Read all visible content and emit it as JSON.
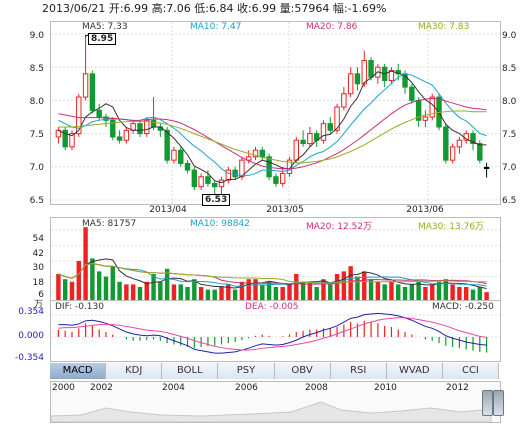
{
  "header": {
    "quote_line": "2013/06/21 开:6.99 高:7.06 低:6.84 收:6.99 量:57964 幅:-1.69%"
  },
  "price_panel": {
    "legend": {
      "ma5": "MA5: 7.33",
      "ma10": "MA10: 7.47",
      "ma20": "MA20: 7.86",
      "ma30": "MA30: 7.83"
    },
    "colors": {
      "ma5": "#333333",
      "ma10": "#1aa3c9",
      "ma20": "#cc2f7a",
      "ma30": "#99aa22",
      "up": "#ee2222",
      "down": "#119933"
    },
    "y_ticks_left": [
      "9.0",
      "8.5",
      "8.0",
      "7.5",
      "7.0",
      "6.5"
    ],
    "y_ticks_right": [
      "9.0",
      "8.5",
      "8.0",
      "7.5",
      "7.0",
      "6.5"
    ],
    "x_ticks": [
      "2013/04",
      "2013/05",
      "2013/06"
    ],
    "high_callout": "8.95",
    "low_callout": "6.53"
  },
  "volume_panel": {
    "legend": {
      "ma5": "MA5: 81757",
      "ma10": "MA10: 98842",
      "ma20": "MA20: 12.52万",
      "ma30": "MA30: 13.76万"
    },
    "y_ticks": [
      "54",
      "42",
      "30",
      "18",
      "6"
    ],
    "unit": "万"
  },
  "macd_panel": {
    "legend": {
      "dif": "DIF: -0.130",
      "dea": "DEA: -0.005",
      "macd": "MACD: -0.250"
    },
    "y_ticks": [
      "0.354",
      "0.000",
      "-0.354"
    ]
  },
  "tabs": [
    {
      "label": "MACD",
      "active": true
    },
    {
      "label": "KDJ",
      "active": false
    },
    {
      "label": "BOLL",
      "active": false
    },
    {
      "label": "PSY",
      "active": false
    },
    {
      "label": "OBV",
      "active": false
    },
    {
      "label": "RSI",
      "active": false
    },
    {
      "label": "WVAD",
      "active": false
    },
    {
      "label": "CCI",
      "active": false
    }
  ],
  "navigator": {
    "years": [
      "2000",
      "2002",
      "2004",
      "2006",
      "2008",
      "2010",
      "2012"
    ]
  },
  "chart_data": {
    "type": "candlestick",
    "title": "2013/06/21 开:6.99 高:7.06 低:6.84 收:6.99 量:57964 幅:-1.69%",
    "ylim": [
      6.5,
      9.0
    ],
    "x_ticks": [
      "2013/04",
      "2013/05",
      "2013/06"
    ],
    "candles": [
      {
        "o": 7.45,
        "c": 7.55,
        "h": 7.6,
        "l": 7.35
      },
      {
        "o": 7.55,
        "c": 7.3,
        "h": 7.6,
        "l": 7.25
      },
      {
        "o": 7.3,
        "c": 7.5,
        "h": 7.55,
        "l": 7.25
      },
      {
        "o": 7.5,
        "c": 8.05,
        "h": 8.1,
        "l": 7.45
      },
      {
        "o": 8.05,
        "c": 8.4,
        "h": 8.95,
        "l": 8.0
      },
      {
        "o": 8.4,
        "c": 7.85,
        "h": 8.45,
        "l": 7.8
      },
      {
        "o": 7.85,
        "c": 7.75,
        "h": 7.95,
        "l": 7.7
      },
      {
        "o": 7.75,
        "c": 7.7,
        "h": 7.8,
        "l": 7.6
      },
      {
        "o": 7.7,
        "c": 7.45,
        "h": 7.75,
        "l": 7.4
      },
      {
        "o": 7.45,
        "c": 7.4,
        "h": 7.55,
        "l": 7.35
      },
      {
        "o": 7.4,
        "c": 7.55,
        "h": 7.6,
        "l": 7.35
      },
      {
        "o": 7.55,
        "c": 7.65,
        "h": 7.7,
        "l": 7.5
      },
      {
        "o": 7.65,
        "c": 7.5,
        "h": 7.7,
        "l": 7.45
      },
      {
        "o": 7.5,
        "c": 7.7,
        "h": 7.75,
        "l": 7.45
      },
      {
        "o": 7.7,
        "c": 7.6,
        "h": 8.05,
        "l": 7.55
      },
      {
        "o": 7.6,
        "c": 7.55,
        "h": 7.65,
        "l": 7.45
      },
      {
        "o": 7.55,
        "c": 7.1,
        "h": 7.6,
        "l": 7.05
      },
      {
        "o": 7.1,
        "c": 7.25,
        "h": 7.3,
        "l": 7.05
      },
      {
        "o": 7.25,
        "c": 7.05,
        "h": 7.3,
        "l": 7.0
      },
      {
        "o": 7.05,
        "c": 6.95,
        "h": 7.1,
        "l": 6.9
      },
      {
        "o": 6.95,
        "c": 6.7,
        "h": 7.0,
        "l": 6.65
      },
      {
        "o": 6.7,
        "c": 6.85,
        "h": 6.9,
        "l": 6.65
      },
      {
        "o": 6.85,
        "c": 6.75,
        "h": 6.95,
        "l": 6.7
      },
      {
        "o": 6.75,
        "c": 6.7,
        "h": 6.8,
        "l": 6.55
      },
      {
        "o": 6.7,
        "c": 6.8,
        "h": 6.85,
        "l": 6.53
      },
      {
        "o": 6.8,
        "c": 6.95,
        "h": 7.0,
        "l": 6.75
      },
      {
        "o": 6.95,
        "c": 6.85,
        "h": 7.0,
        "l": 6.8
      },
      {
        "o": 6.85,
        "c": 7.1,
        "h": 7.15,
        "l": 6.8
      },
      {
        "o": 7.1,
        "c": 7.15,
        "h": 7.25,
        "l": 7.05
      },
      {
        "o": 7.15,
        "c": 7.25,
        "h": 7.3,
        "l": 7.1
      },
      {
        "o": 7.25,
        "c": 7.15,
        "h": 7.3,
        "l": 7.1
      },
      {
        "o": 7.15,
        "c": 6.85,
        "h": 7.2,
        "l": 6.8
      },
      {
        "o": 6.85,
        "c": 6.75,
        "h": 6.9,
        "l": 6.7
      },
      {
        "o": 6.75,
        "c": 6.9,
        "h": 7.0,
        "l": 6.7
      },
      {
        "o": 6.9,
        "c": 7.1,
        "h": 7.15,
        "l": 6.85
      },
      {
        "o": 7.1,
        "c": 7.4,
        "h": 7.45,
        "l": 7.05
      },
      {
        "o": 7.4,
        "c": 7.35,
        "h": 7.55,
        "l": 7.3
      },
      {
        "o": 7.35,
        "c": 7.5,
        "h": 7.6,
        "l": 7.3
      },
      {
        "o": 7.5,
        "c": 7.4,
        "h": 7.55,
        "l": 7.3
      },
      {
        "o": 7.4,
        "c": 7.65,
        "h": 7.7,
        "l": 7.35
      },
      {
        "o": 7.65,
        "c": 7.55,
        "h": 7.75,
        "l": 7.5
      },
      {
        "o": 7.55,
        "c": 7.9,
        "h": 7.95,
        "l": 7.5
      },
      {
        "o": 7.9,
        "c": 8.1,
        "h": 8.2,
        "l": 7.85
      },
      {
        "o": 8.1,
        "c": 8.4,
        "h": 8.5,
        "l": 8.05
      },
      {
        "o": 8.4,
        "c": 8.25,
        "h": 8.5,
        "l": 8.15
      },
      {
        "o": 8.25,
        "c": 8.6,
        "h": 8.75,
        "l": 8.2
      },
      {
        "o": 8.6,
        "c": 8.35,
        "h": 8.65,
        "l": 8.3
      },
      {
        "o": 8.35,
        "c": 8.5,
        "h": 8.55,
        "l": 8.25
      },
      {
        "o": 8.5,
        "c": 8.3,
        "h": 8.55,
        "l": 8.2
      },
      {
        "o": 8.3,
        "c": 8.45,
        "h": 8.5,
        "l": 8.25
      },
      {
        "o": 8.45,
        "c": 8.4,
        "h": 8.55,
        "l": 8.3
      },
      {
        "o": 8.4,
        "c": 8.2,
        "h": 8.45,
        "l": 8.1
      },
      {
        "o": 8.2,
        "c": 8.0,
        "h": 8.25,
        "l": 7.95
      },
      {
        "o": 8.0,
        "c": 7.7,
        "h": 8.05,
        "l": 7.6
      },
      {
        "o": 7.7,
        "c": 7.75,
        "h": 7.85,
        "l": 7.6
      },
      {
        "o": 7.75,
        "c": 8.05,
        "h": 8.1,
        "l": 7.7
      },
      {
        "o": 8.05,
        "c": 7.6,
        "h": 8.1,
        "l": 7.55
      },
      {
        "o": 7.6,
        "c": 7.1,
        "h": 7.65,
        "l": 7.05
      },
      {
        "o": 7.1,
        "c": 7.3,
        "h": 7.35,
        "l": 7.05
      },
      {
        "o": 7.3,
        "c": 7.4,
        "h": 7.45,
        "l": 7.2
      },
      {
        "o": 7.4,
        "c": 7.5,
        "h": 7.55,
        "l": 7.35
      },
      {
        "o": 7.5,
        "c": 7.35,
        "h": 7.55,
        "l": 7.25
      },
      {
        "o": 7.35,
        "c": 7.1,
        "h": 7.4,
        "l": 7.05
      },
      {
        "o": 6.99,
        "c": 6.99,
        "h": 7.06,
        "l": 6.84
      }
    ],
    "series": [
      {
        "name": "MA5",
        "values": [
          7.55,
          7.5,
          7.47,
          7.55,
          7.75,
          7.83,
          7.88,
          7.95,
          7.9,
          7.7,
          7.59,
          7.55,
          7.55,
          7.56,
          7.6,
          7.6,
          7.52,
          7.43,
          7.31,
          7.18,
          7.01,
          6.96,
          6.9,
          6.79,
          6.76,
          6.81,
          6.81,
          6.86,
          6.95,
          7.04,
          7.1,
          7.07,
          7.03,
          6.98,
          6.97,
          7.1,
          7.18,
          7.3,
          7.4,
          7.47,
          7.49,
          7.58,
          7.72,
          7.91,
          8.04,
          8.27,
          8.34,
          8.43,
          8.4,
          8.44,
          8.41,
          8.37,
          8.27,
          8.13,
          8.01,
          7.94,
          7.82,
          7.64,
          7.55,
          7.5,
          7.42,
          7.37,
          7.33,
          7.33
        ]
      },
      {
        "name": "MA10",
        "values": [
          7.7,
          7.65,
          7.6,
          7.58,
          7.62,
          7.68,
          7.7,
          7.72,
          7.72,
          7.72,
          7.71,
          7.69,
          7.7,
          7.73,
          7.75,
          7.71,
          7.65,
          7.58,
          7.5,
          7.4,
          7.31,
          7.24,
          7.15,
          7.07,
          6.97,
          6.9,
          6.88,
          6.87,
          6.87,
          6.9,
          6.95,
          6.95,
          6.94,
          6.93,
          6.95,
          7.02,
          7.08,
          7.15,
          7.2,
          7.23,
          7.3,
          7.38,
          7.5,
          7.63,
          7.75,
          7.87,
          7.96,
          8.07,
          8.16,
          8.25,
          8.35,
          8.4,
          8.38,
          8.33,
          8.28,
          8.23,
          8.1,
          7.96,
          7.84,
          7.74,
          7.69,
          7.6,
          7.5,
          7.47
        ]
      },
      {
        "name": "MA20",
        "values": [
          7.8,
          7.78,
          7.76,
          7.74,
          7.74,
          7.74,
          7.74,
          7.74,
          7.73,
          7.72,
          7.71,
          7.7,
          7.7,
          7.71,
          7.72,
          7.72,
          7.71,
          7.69,
          7.66,
          7.61,
          7.56,
          7.5,
          7.44,
          7.38,
          7.32,
          7.26,
          7.2,
          7.14,
          7.09,
          7.05,
          7.01,
          6.99,
          6.98,
          6.97,
          6.97,
          6.98,
          7.0,
          7.03,
          7.06,
          7.1,
          7.15,
          7.2,
          7.26,
          7.33,
          7.4,
          7.48,
          7.56,
          7.64,
          7.72,
          7.8,
          7.87,
          7.93,
          7.97,
          8.0,
          8.02,
          8.03,
          8.02,
          7.99,
          7.96,
          7.93,
          7.9,
          7.88,
          7.87,
          7.86
        ]
      },
      {
        "name": "MA30",
        "values": [
          7.6,
          7.6,
          7.6,
          7.61,
          7.62,
          7.63,
          7.64,
          7.65,
          7.66,
          7.67,
          7.68,
          7.68,
          7.68,
          7.68,
          7.67,
          7.66,
          7.64,
          7.61,
          7.58,
          7.54,
          7.5,
          7.46,
          7.42,
          7.38,
          7.34,
          7.3,
          7.26,
          7.23,
          7.2,
          7.17,
          7.14,
          7.12,
          7.1,
          7.08,
          7.07,
          7.06,
          7.06,
          7.07,
          7.08,
          7.1,
          7.12,
          7.15,
          7.19,
          7.23,
          7.28,
          7.33,
          7.39,
          7.45,
          7.51,
          7.57,
          7.62,
          7.67,
          7.71,
          7.75,
          7.78,
          7.8,
          7.82,
          7.83,
          7.84,
          7.84,
          7.84,
          7.83,
          7.83,
          7.83
        ]
      }
    ],
    "volume": [
      20,
      16,
      14,
      30,
      56,
      32,
      22,
      18,
      26,
      14,
      12,
      12,
      10,
      14,
      20,
      14,
      24,
      12,
      12,
      10,
      16,
      10,
      8,
      8,
      10,
      12,
      8,
      14,
      16,
      16,
      12,
      14,
      10,
      10,
      12,
      20,
      14,
      14,
      10,
      16,
      12,
      20,
      22,
      26,
      18,
      22,
      16,
      14,
      12,
      14,
      12,
      10,
      12,
      14,
      10,
      12,
      14,
      16,
      12,
      10,
      10,
      8,
      10,
      6
    ],
    "macd_hist": [
      0.12,
      0.1,
      0.08,
      0.14,
      0.22,
      0.18,
      0.12,
      0.08,
      0.04,
      0.0,
      -0.04,
      -0.06,
      -0.06,
      -0.05,
      -0.04,
      -0.06,
      -0.1,
      -0.12,
      -0.14,
      -0.16,
      -0.18,
      -0.16,
      -0.15,
      -0.14,
      -0.12,
      -0.1,
      -0.08,
      -0.05,
      -0.02,
      0.02,
      0.04,
      0.02,
      0.0,
      0.01,
      0.04,
      0.08,
      0.1,
      0.12,
      0.12,
      0.14,
      0.14,
      0.16,
      0.2,
      0.24,
      0.22,
      0.26,
      0.24,
      0.22,
      0.18,
      0.16,
      0.12,
      0.08,
      0.04,
      0.0,
      -0.04,
      -0.06,
      -0.1,
      -0.14,
      -0.16,
      -0.18,
      -0.2,
      -0.22,
      -0.24,
      -0.25
    ],
    "macd_dif": [
      0.2,
      0.2,
      0.19,
      0.21,
      0.26,
      0.27,
      0.25,
      0.22,
      0.18,
      0.13,
      0.08,
      0.05,
      0.03,
      0.02,
      0.03,
      0.02,
      -0.02,
      -0.06,
      -0.1,
      -0.14,
      -0.2,
      -0.22,
      -0.24,
      -0.26,
      -0.26,
      -0.25,
      -0.24,
      -0.21,
      -0.18,
      -0.14,
      -0.11,
      -0.12,
      -0.13,
      -0.12,
      -0.09,
      -0.05,
      0.0,
      0.04,
      0.07,
      0.11,
      0.14,
      0.18,
      0.24,
      0.3,
      0.32,
      0.36,
      0.37,
      0.38,
      0.37,
      0.36,
      0.34,
      0.31,
      0.27,
      0.22,
      0.17,
      0.14,
      0.09,
      0.02,
      -0.02,
      -0.05,
      -0.08,
      -0.1,
      -0.12,
      -0.13
    ],
    "macd_dea": [
      0.14,
      0.15,
      0.15,
      0.16,
      0.17,
      0.19,
      0.2,
      0.2,
      0.2,
      0.19,
      0.17,
      0.15,
      0.13,
      0.11,
      0.1,
      0.09,
      0.07,
      0.04,
      0.01,
      -0.02,
      -0.06,
      -0.09,
      -0.12,
      -0.15,
      -0.17,
      -0.19,
      -0.2,
      -0.21,
      -0.21,
      -0.2,
      -0.18,
      -0.17,
      -0.16,
      -0.15,
      -0.14,
      -0.12,
      -0.1,
      -0.08,
      -0.05,
      -0.02,
      0.01,
      0.05,
      0.09,
      0.13,
      0.17,
      0.21,
      0.24,
      0.27,
      0.29,
      0.3,
      0.31,
      0.31,
      0.3,
      0.28,
      0.26,
      0.24,
      0.21,
      0.18,
      0.14,
      0.1,
      0.07,
      0.04,
      0.01,
      -0.005
    ]
  }
}
